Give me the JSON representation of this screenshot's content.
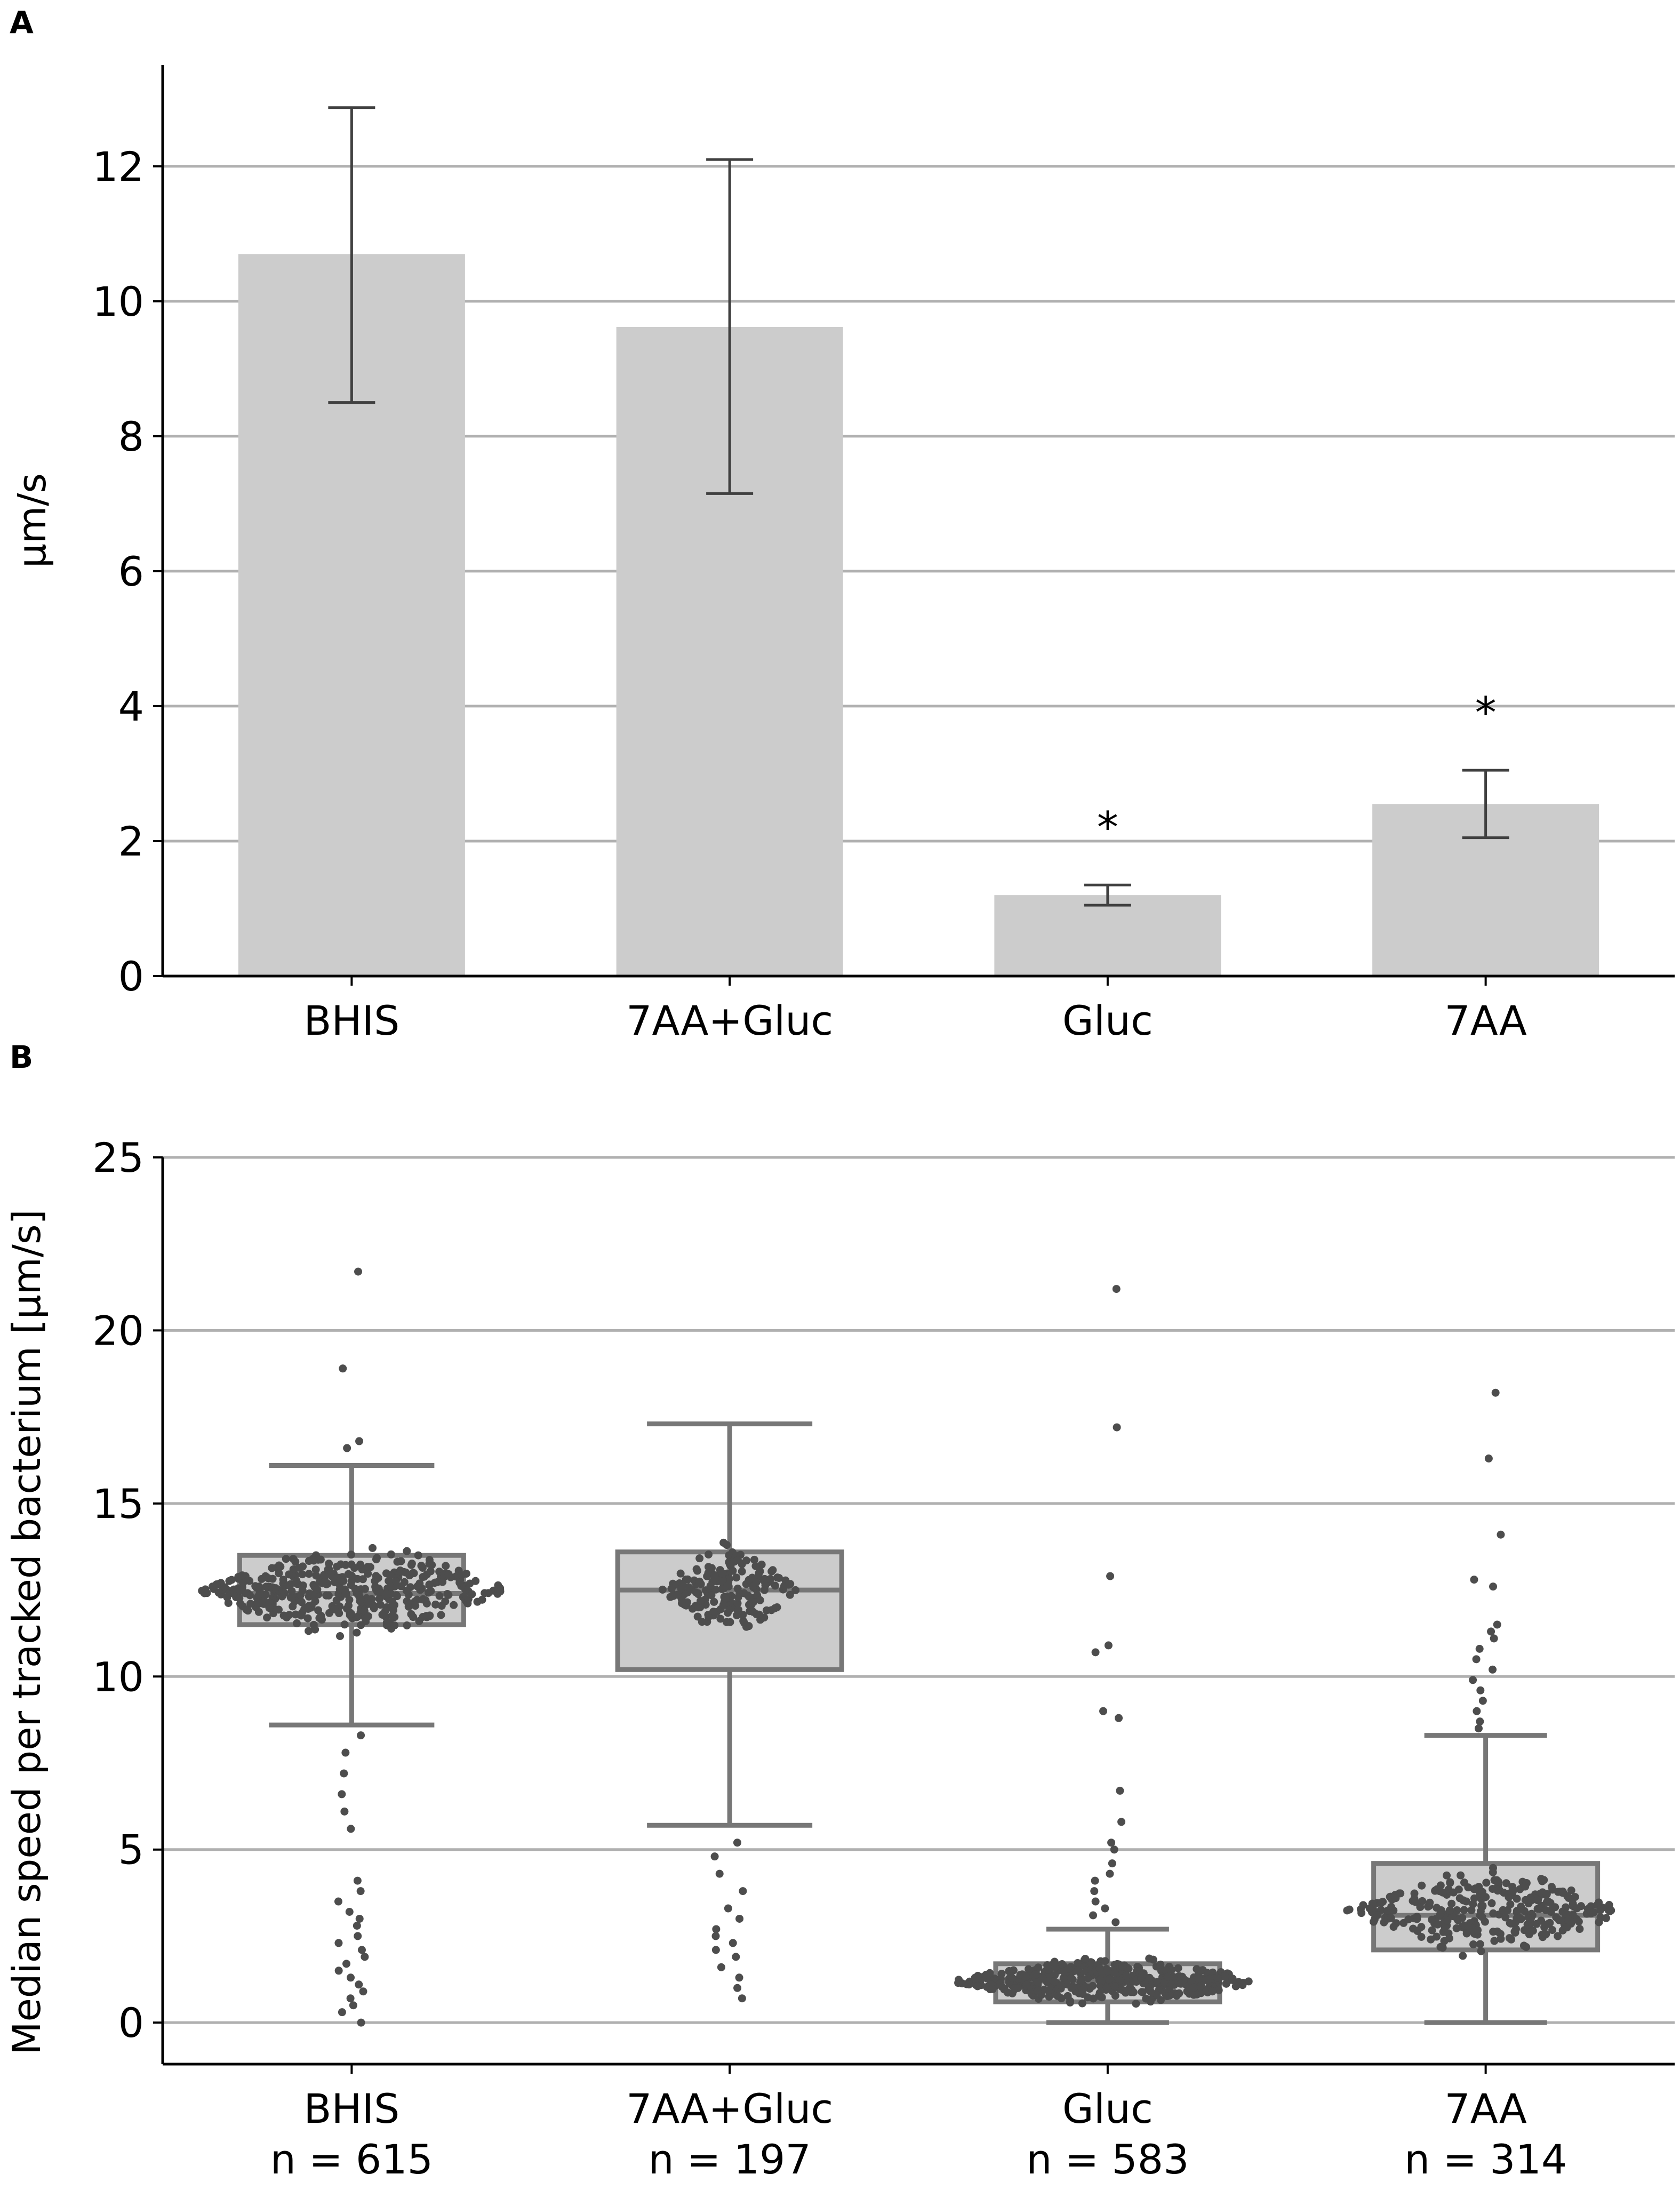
{
  "chart_data": [
    {
      "panel": "A",
      "type": "bar",
      "ylabel": "µm/s",
      "ylim": [
        0,
        13.5
      ],
      "yticks": [
        0,
        2,
        4,
        6,
        8,
        10,
        12
      ],
      "grid": true,
      "categories": [
        "BHIS",
        "7AA+Gluc",
        "Gluc",
        "7AA"
      ],
      "values": [
        10.7,
        9.62,
        1.2,
        2.55
      ],
      "error_low": [
        8.5,
        7.15,
        1.05,
        2.05
      ],
      "error_high": [
        12.87,
        12.1,
        1.35,
        3.05
      ],
      "annotations": [
        "",
        "",
        "*",
        "*"
      ],
      "colors": {
        "bar": "#cccccc",
        "errorbar": "#404040",
        "grid": "#b0b0b0"
      }
    },
    {
      "panel": "B",
      "type": "box",
      "ylabel": "Median speed per tracked bacterium [µm/s]",
      "ylim": [
        -1.2,
        25
      ],
      "yticks": [
        0,
        5,
        10,
        15,
        20,
        25
      ],
      "grid": true,
      "categories": [
        "BHIS",
        "7AA+Gluc",
        "Gluc",
        "7AA"
      ],
      "n_labels": [
        "n = 615",
        "n = 197",
        "n = 583",
        "n = 314"
      ],
      "n": [
        615,
        197,
        583,
        314
      ],
      "boxes": [
        {
          "q1": 11.5,
          "median": 12.4,
          "q3": 13.5,
          "whislo": 8.6,
          "whishi": 16.1,
          "outliers": [
            21.7,
            18.9,
            16.8,
            16.6,
            8.3,
            7.8,
            7.2,
            6.6,
            6.1,
            5.6,
            4.1,
            3.8,
            3.5,
            3.2,
            3.0,
            2.8,
            2.5,
            2.3,
            2.1,
            1.9,
            1.7,
            1.5,
            1.3,
            1.1,
            0.9,
            0.7,
            0.5,
            0.3,
            0.0
          ]
        },
        {
          "q1": 10.2,
          "median": 12.5,
          "q3": 13.6,
          "whislo": 5.7,
          "whishi": 17.3,
          "outliers": [
            5.2,
            4.8,
            4.3,
            3.8,
            3.3,
            3.0,
            2.7,
            2.5,
            2.3,
            2.1,
            1.9,
            1.6,
            1.3,
            1.0,
            0.7
          ]
        },
        {
          "q1": 0.6,
          "median": 1.2,
          "q3": 1.7,
          "whislo": 0.0,
          "whishi": 2.7,
          "outliers": [
            21.2,
            17.2,
            12.9,
            10.9,
            10.7,
            9.0,
            8.8,
            6.7,
            5.8,
            5.2,
            5.0,
            4.6,
            4.3,
            4.1,
            3.8,
            3.5,
            3.3,
            3.1,
            2.9
          ]
        },
        {
          "q1": 2.1,
          "median": 3.1,
          "q3": 4.6,
          "whislo": 0.0,
          "whishi": 8.3,
          "outliers": [
            18.2,
            16.3,
            14.1,
            12.8,
            12.6,
            11.5,
            11.3,
            11.1,
            10.8,
            10.5,
            10.2,
            9.9,
            9.6,
            9.3,
            9.0,
            8.7,
            8.5
          ]
        }
      ],
      "swarm_spreads": [
        {
          "range": [
            11.0,
            14.0
          ],
          "halfwidth": 0.42
        },
        {
          "range": [
            11.0,
            14.0
          ],
          "halfwidth": 0.18
        },
        {
          "range": [
            0.4,
            2.0
          ],
          "halfwidth": 0.42
        },
        {
          "range": [
            1.8,
            4.6
          ],
          "halfwidth": 0.38
        }
      ],
      "colors": {
        "box": "#cccccc",
        "box_edge": "#777777",
        "point": "#4d4d4d",
        "grid": "#b0b0b0"
      }
    }
  ]
}
